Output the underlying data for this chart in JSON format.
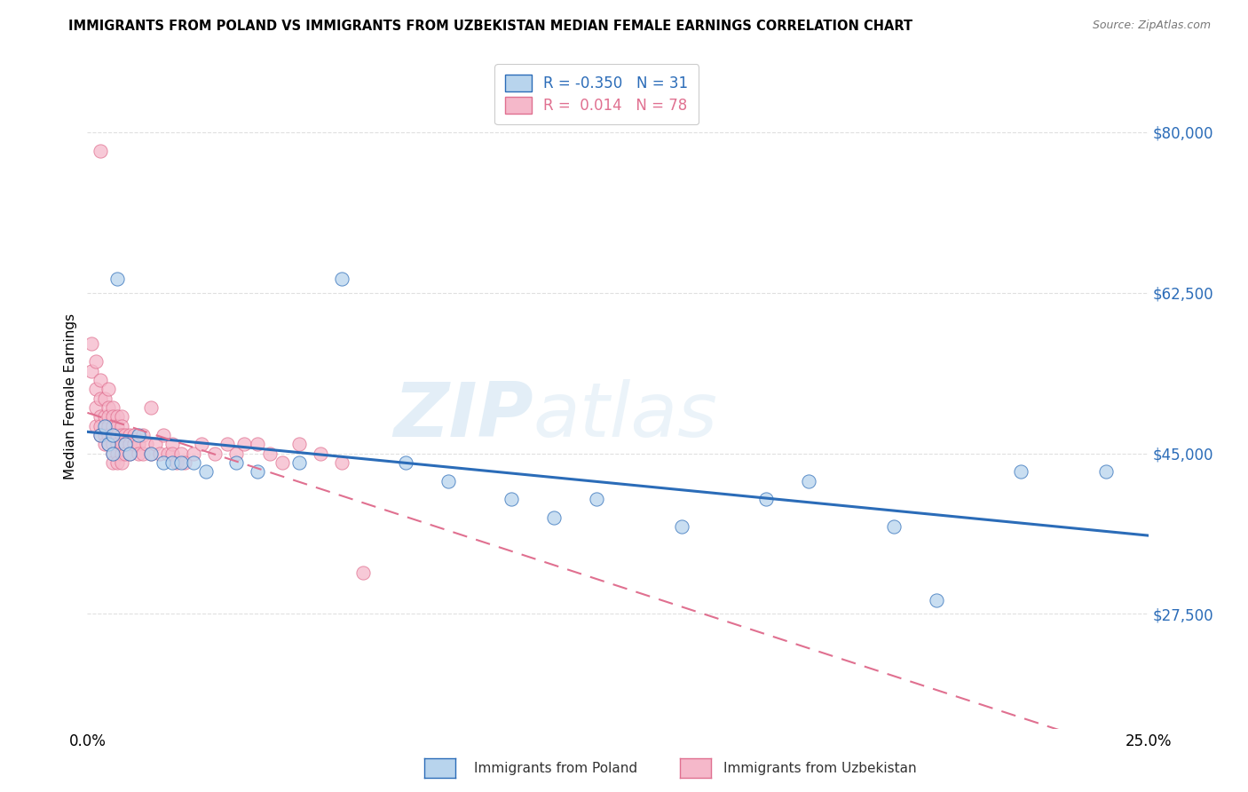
{
  "title": "IMMIGRANTS FROM POLAND VS IMMIGRANTS FROM UZBEKISTAN MEDIAN FEMALE EARNINGS CORRELATION CHART",
  "source": "Source: ZipAtlas.com",
  "ylabel": "Median Female Earnings",
  "xlim": [
    0.0,
    0.25
  ],
  "ylim": [
    15000,
    87500
  ],
  "yticks": [
    27500,
    45000,
    62500,
    80000
  ],
  "ytick_labels": [
    "$27,500",
    "$45,000",
    "$62,500",
    "$80,000"
  ],
  "background_color": "#ffffff",
  "grid_color": "#e0e0e0",
  "watermark_top": "ZIP",
  "watermark_bot": "atlas",
  "poland_color": "#b8d4ed",
  "uzbekistan_color": "#f5b8ca",
  "poland_line_color": "#2b6cb8",
  "uzbekistan_line_color": "#e07090",
  "legend_poland_label": "R = -0.350   N = 31",
  "legend_uzbekistan_label": "R =  0.014   N = 78",
  "poland_x": [
    0.003,
    0.004,
    0.005,
    0.006,
    0.006,
    0.007,
    0.009,
    0.01,
    0.012,
    0.015,
    0.018,
    0.02,
    0.022,
    0.025,
    0.028,
    0.035,
    0.04,
    0.05,
    0.06,
    0.075,
    0.085,
    0.1,
    0.11,
    0.12,
    0.14,
    0.16,
    0.17,
    0.19,
    0.2,
    0.22,
    0.24
  ],
  "poland_y": [
    47000,
    48000,
    46000,
    47000,
    45000,
    64000,
    46000,
    45000,
    47000,
    45000,
    44000,
    44000,
    44000,
    44000,
    43000,
    44000,
    43000,
    44000,
    64000,
    44000,
    42000,
    40000,
    38000,
    40000,
    37000,
    40000,
    42000,
    37000,
    29000,
    43000,
    43000
  ],
  "uzbekistan_x": [
    0.001,
    0.001,
    0.002,
    0.002,
    0.002,
    0.002,
    0.003,
    0.003,
    0.003,
    0.003,
    0.003,
    0.004,
    0.004,
    0.004,
    0.004,
    0.005,
    0.005,
    0.005,
    0.005,
    0.005,
    0.005,
    0.006,
    0.006,
    0.006,
    0.006,
    0.006,
    0.006,
    0.006,
    0.007,
    0.007,
    0.007,
    0.007,
    0.007,
    0.007,
    0.008,
    0.008,
    0.008,
    0.008,
    0.008,
    0.008,
    0.009,
    0.009,
    0.009,
    0.01,
    0.01,
    0.01,
    0.011,
    0.011,
    0.012,
    0.012,
    0.013,
    0.013,
    0.014,
    0.015,
    0.015,
    0.016,
    0.017,
    0.018,
    0.019,
    0.02,
    0.02,
    0.021,
    0.022,
    0.023,
    0.025,
    0.027,
    0.03,
    0.033,
    0.035,
    0.037,
    0.04,
    0.043,
    0.046,
    0.05,
    0.055,
    0.06,
    0.065,
    0.003
  ],
  "uzbekistan_y": [
    57000,
    54000,
    55000,
    52000,
    50000,
    48000,
    53000,
    51000,
    49000,
    48000,
    47000,
    51000,
    49000,
    47000,
    46000,
    52000,
    50000,
    49000,
    48000,
    47000,
    46000,
    50000,
    49000,
    48000,
    47000,
    46000,
    45000,
    44000,
    49000,
    48000,
    47000,
    46000,
    45000,
    44000,
    49000,
    48000,
    47000,
    46000,
    45000,
    44000,
    47000,
    46000,
    45000,
    47000,
    46000,
    45000,
    47000,
    46000,
    46000,
    45000,
    47000,
    45000,
    46000,
    50000,
    45000,
    46000,
    45000,
    47000,
    45000,
    46000,
    45000,
    44000,
    45000,
    44000,
    45000,
    46000,
    45000,
    46000,
    45000,
    46000,
    46000,
    45000,
    44000,
    46000,
    45000,
    44000,
    32000,
    78000
  ]
}
